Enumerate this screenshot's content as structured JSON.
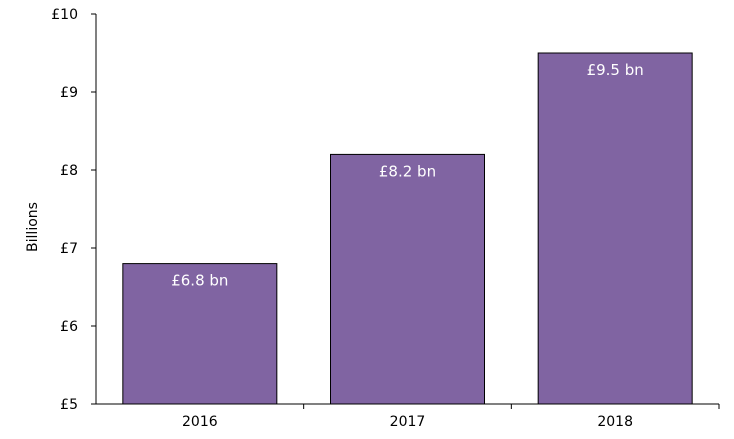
{
  "chart_data": {
    "type": "bar",
    "categories": [
      "2016",
      "2017",
      "2018"
    ],
    "values": [
      6.8,
      8.2,
      9.5
    ],
    "data_labels": [
      "£6.8 bn",
      "£8.2 bn",
      "£9.5 bn"
    ],
    "title": "",
    "xlabel": "",
    "ylabel": "Billions",
    "ylim": [
      5,
      10
    ],
    "yticks": [
      5,
      6,
      7,
      8,
      9,
      10
    ],
    "ytick_labels": [
      "£5",
      "£6",
      "£7",
      "£8",
      "£9",
      "£10"
    ],
    "grid": false,
    "legend": "none",
    "colors": {
      "bar": "#8064a2",
      "bar_edge": "#000000",
      "axis": "#000000",
      "label": "#ffffff"
    }
  }
}
